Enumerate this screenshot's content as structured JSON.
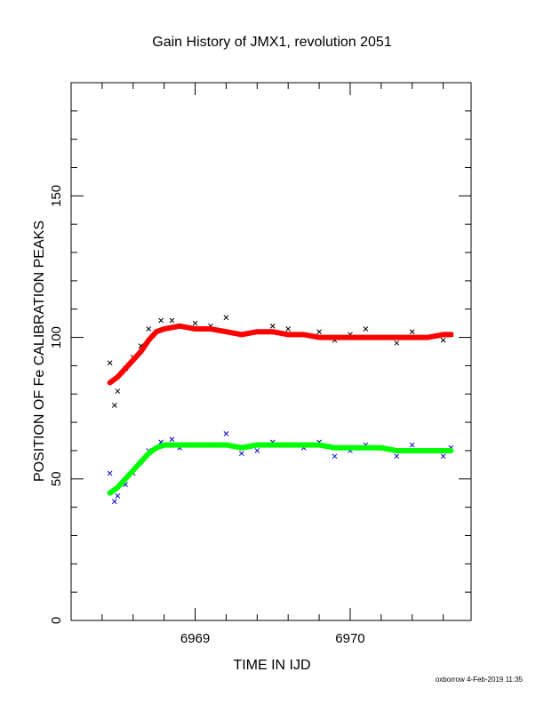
{
  "chart_data": {
    "type": "scatter",
    "title": "Gain History of JMX1, revolution 2051",
    "xlabel": "TIME IN IJD",
    "ylabel": "POSITION OF Fe CALIBRATION PEAKS",
    "xlim": [
      6968.2,
      6970.78
    ],
    "ylim": [
      0,
      190
    ],
    "x_ticks": [
      6969,
      6970
    ],
    "y_ticks": [
      0,
      50,
      100,
      150
    ],
    "grid": false,
    "series": [
      {
        "marker": "x",
        "color": "#000000",
        "x": [
          6968.45,
          6968.48,
          6968.5,
          6968.55,
          6968.6,
          6968.65,
          6968.7,
          6968.78,
          6968.85,
          6968.9,
          6969.0,
          6969.1,
          6969.2,
          6969.3,
          6969.4,
          6969.5,
          6969.6,
          6969.7,
          6969.8,
          6969.9,
          6970.0,
          6970.1,
          6970.2,
          6970.3,
          6970.4,
          6970.5,
          6970.6,
          6970.65
        ],
        "y": [
          91,
          76,
          81,
          89,
          93,
          97,
          103,
          106,
          106,
          104,
          105,
          104,
          107,
          101,
          102,
          104,
          103,
          101,
          102,
          99,
          101,
          103,
          100,
          98,
          102,
          100,
          99,
          101
        ]
      },
      {
        "marker": "x",
        "color": "#0000cc",
        "x": [
          6968.45,
          6968.48,
          6968.5,
          6968.55,
          6968.6,
          6968.65,
          6968.7,
          6968.78,
          6968.85,
          6968.9,
          6969.0,
          6969.1,
          6969.2,
          6969.3,
          6969.4,
          6969.5,
          6969.6,
          6969.7,
          6969.8,
          6969.9,
          6970.0,
          6970.1,
          6970.2,
          6970.3,
          6970.4,
          6970.5,
          6970.6,
          6970.65
        ],
        "y": [
          52,
          42,
          44,
          48,
          52,
          56,
          60,
          63,
          64,
          61,
          62,
          62,
          66,
          59,
          60,
          63,
          62,
          61,
          63,
          58,
          60,
          62,
          61,
          58,
          62,
          60,
          58,
          61
        ]
      },
      {
        "marker": "line",
        "color": "#ff0000",
        "x": [
          6968.45,
          6968.5,
          6968.55,
          6968.6,
          6968.65,
          6968.7,
          6968.75,
          6968.8,
          6968.9,
          6969.0,
          6969.1,
          6969.2,
          6969.3,
          6969.4,
          6969.5,
          6969.6,
          6969.7,
          6969.8,
          6969.9,
          6970.0,
          6970.1,
          6970.2,
          6970.3,
          6970.4,
          6970.5,
          6970.6,
          6970.65
        ],
        "y": [
          84,
          86,
          89,
          92,
          95,
          99,
          102,
          103,
          104,
          103,
          103,
          102,
          101,
          102,
          102,
          101,
          101,
          100,
          100,
          100,
          100,
          100,
          100,
          100,
          100,
          101,
          101
        ]
      },
      {
        "marker": "line",
        "color": "#00ff00",
        "x": [
          6968.45,
          6968.5,
          6968.55,
          6968.6,
          6968.65,
          6968.7,
          6968.75,
          6968.8,
          6968.9,
          6969.0,
          6969.1,
          6969.2,
          6969.3,
          6969.4,
          6969.5,
          6969.6,
          6969.7,
          6969.8,
          6969.9,
          6970.0,
          6970.1,
          6970.2,
          6970.3,
          6970.4,
          6970.5,
          6970.6,
          6970.65
        ],
        "y": [
          45,
          47,
          50,
          53,
          56,
          59,
          61,
          62,
          62,
          62,
          62,
          62,
          61,
          62,
          62,
          62,
          62,
          62,
          61,
          61,
          61,
          61,
          60,
          60,
          60,
          60,
          60
        ]
      }
    ]
  },
  "footer": "oxborrow  4-Feb-2019 11:35"
}
